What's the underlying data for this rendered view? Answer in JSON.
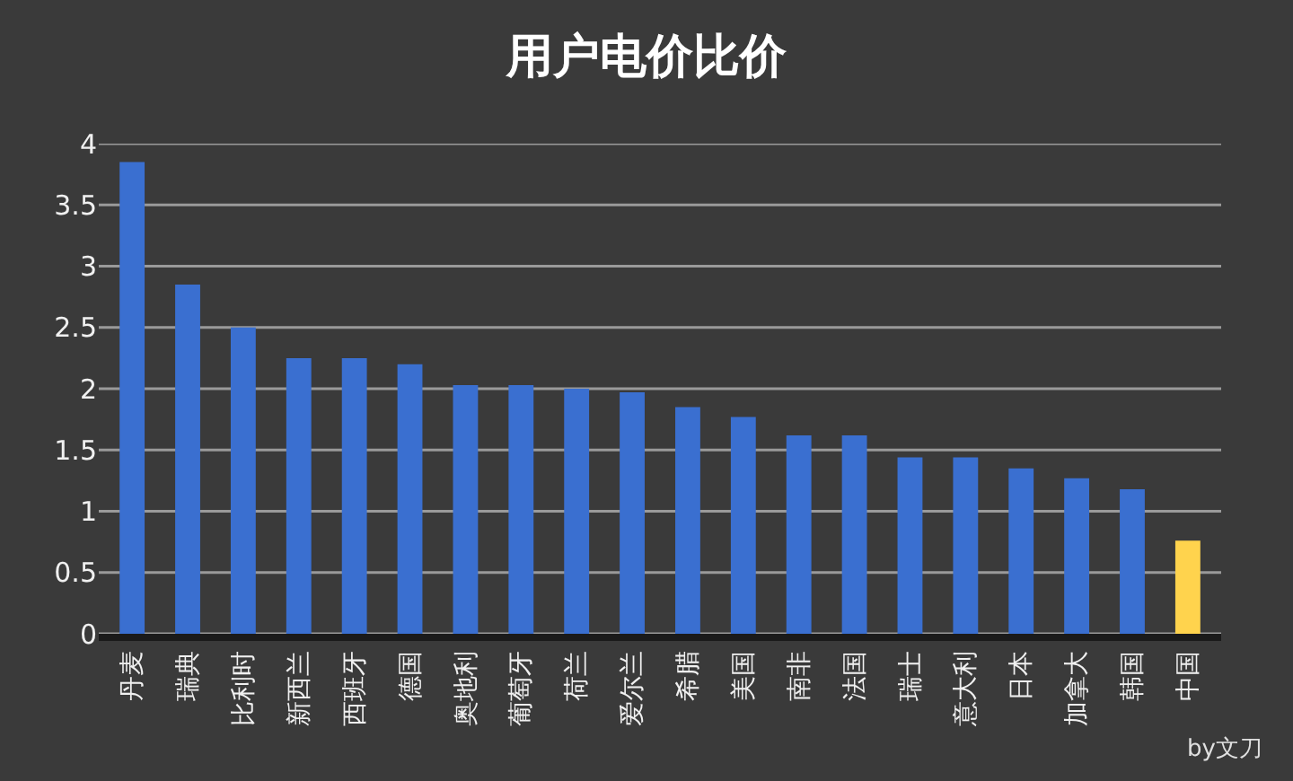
{
  "chart_data": {
    "type": "bar",
    "title": "用户电价比价",
    "categories": [
      "丹麦",
      "瑞典",
      "比利时",
      "新西兰",
      "西班牙",
      "德国",
      "奥地利",
      "葡萄牙",
      "荷兰",
      "爱尔兰",
      "希腊",
      "美国",
      "南非",
      "法国",
      "瑞士",
      "意大利",
      "日本",
      "加拿大",
      "韩国",
      "中国"
    ],
    "values": [
      3.85,
      2.85,
      2.5,
      2.25,
      2.25,
      2.2,
      2.03,
      2.03,
      2.0,
      1.97,
      1.85,
      1.77,
      1.62,
      1.62,
      1.44,
      1.44,
      1.35,
      1.27,
      1.18,
      0.76
    ],
    "colors": [
      "#3a6fd0",
      "#3a6fd0",
      "#3a6fd0",
      "#3a6fd0",
      "#3a6fd0",
      "#3a6fd0",
      "#3a6fd0",
      "#3a6fd0",
      "#3a6fd0",
      "#3a6fd0",
      "#3a6fd0",
      "#3a6fd0",
      "#3a6fd0",
      "#3a6fd0",
      "#3a6fd0",
      "#3a6fd0",
      "#3a6fd0",
      "#3a6fd0",
      "#3a6fd0",
      "#ffd34d"
    ],
    "ylim": [
      0,
      4
    ],
    "yticks": [
      0,
      0.5,
      1,
      1.5,
      2,
      2.5,
      3,
      3.5,
      4
    ],
    "grid": "y",
    "annotations": [
      "by文刀"
    ]
  }
}
